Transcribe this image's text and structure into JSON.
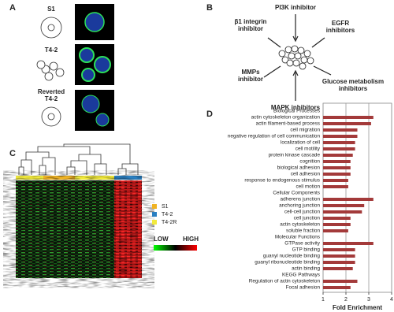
{
  "panels": {
    "a": {
      "label": "A",
      "rows": [
        {
          "lines": [
            "S1"
          ]
        },
        {
          "lines": [
            "T4-2"
          ]
        },
        {
          "lines": [
            "Reverted",
            "T4-2"
          ]
        }
      ]
    },
    "b": {
      "label": "B",
      "inhibitors": [
        {
          "lines": [
            "PI3K inhibitor"
          ]
        },
        {
          "lines": [
            "β1 integrin",
            "inhibitor"
          ]
        },
        {
          "lines": [
            "EGFR",
            "inhibitors"
          ]
        },
        {
          "lines": [
            "Glucose metabolism",
            "inhibitors"
          ]
        },
        {
          "lines": [
            "MAPK inhibitors"
          ]
        },
        {
          "lines": [
            "MMPs",
            "inhibitor"
          ]
        }
      ]
    },
    "c": {
      "label": "C",
      "legend": [
        {
          "name": "S1",
          "color": "#f0b323"
        },
        {
          "name": "T4-2",
          "color": "#2a7fc1"
        },
        {
          "name": "T4-2R",
          "color": "#f2ea3c"
        }
      ],
      "scale_low": "LOW",
      "scale_high": "HIGH"
    }
  },
  "chart_data": {
    "type": "bar",
    "orientation": "horizontal",
    "panel_label": "D",
    "categories": [
      "Biological Processes",
      "actin cytoskeleton organization",
      "actin filament-based process",
      "cell migration",
      "negative regulation of cell communication",
      "localization of cell",
      "cell motility",
      "protein kinase cascade",
      "cognition",
      "biological adhesion",
      "cell adhesion",
      "response to endogenous stimulus",
      "cell motion",
      "Cellular Components",
      "adherens junction",
      "anchoring junction",
      "cell-cell junction",
      "cell junction",
      "actin cytoskeleton",
      "soluble fraction",
      "Molecular Functions",
      "GTPase activity",
      "GTP binding",
      "guanyl nucleotide binding",
      "guanyl ribonucleotide binding",
      "actin binding",
      "KEGG Pathways",
      "Regulation of actin cytoskeleton",
      "Focal adhesion"
    ],
    "values": [
      null,
      3.2,
      3.1,
      2.5,
      2.5,
      2.4,
      2.4,
      2.3,
      2.2,
      2.2,
      2.2,
      2.1,
      2.1,
      null,
      3.2,
      2.8,
      2.7,
      2.2,
      2.2,
      2.1,
      null,
      3.2,
      2.4,
      2.4,
      2.4,
      2.3,
      null,
      2.5,
      2.2
    ],
    "xlim": [
      1,
      4
    ],
    "xticks": [
      1,
      2,
      3,
      4
    ],
    "xlabel": "Fold Enrichment",
    "color": "#a33a3a",
    "grid": true
  }
}
